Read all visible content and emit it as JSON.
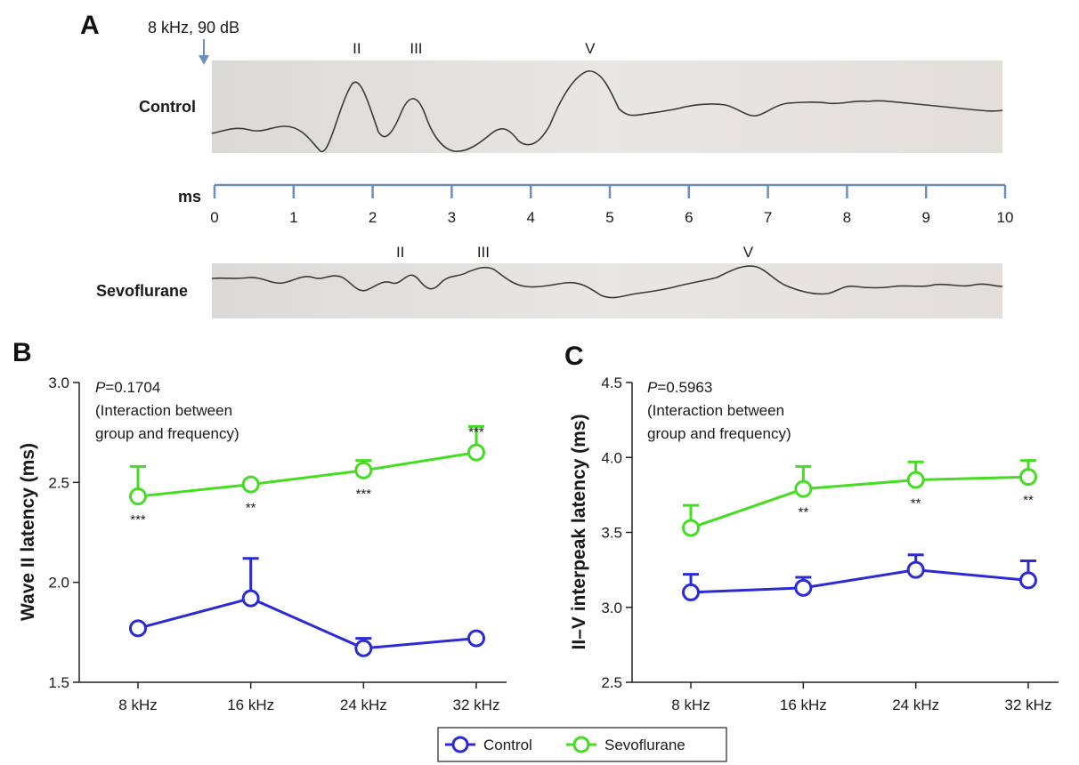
{
  "panel_a": {
    "letter": "A",
    "stimulus_label": "8 kHz, 90 dB",
    "ms_label": "ms",
    "ms_ticks": [
      "0",
      "1",
      "2",
      "3",
      "4",
      "5",
      "6",
      "7",
      "8",
      "9",
      "10"
    ],
    "control": {
      "label": "Control",
      "peaks": [
        {
          "label": "II",
          "ms": 1.8
        },
        {
          "label": "III",
          "ms": 2.55
        },
        {
          "label": "V",
          "ms": 4.75
        }
      ]
    },
    "sevoflurane": {
      "label": "Sevoflurane",
      "peaks": [
        {
          "label": "II",
          "ms": 2.35
        },
        {
          "label": "III",
          "ms": 3.4
        },
        {
          "label": "V",
          "ms": 6.75
        }
      ]
    }
  },
  "chart_data": [
    {
      "type": "line",
      "panel": "B",
      "ylabel": "Wave II latency (ms)",
      "xlabel": "",
      "categories": [
        "8 kHz",
        "16 kHz",
        "24 kHz",
        "32 kHz"
      ],
      "ylim": [
        1.5,
        3.0
      ],
      "yticks": [
        "1.5",
        "2.0",
        "2.5",
        "3.0"
      ],
      "ytick_values": [
        1.5,
        2.0,
        2.5,
        3.0
      ],
      "annotation": {
        "p_prefix": "P",
        "p_value": "=0.1704",
        "line1": "(Interaction between",
        "line2": "group and frequency)"
      },
      "series": [
        {
          "name": "Control",
          "values": [
            1.77,
            1.92,
            1.67,
            1.72
          ],
          "errors": [
            0.0,
            0.2,
            0.05,
            0.0
          ]
        },
        {
          "name": "Sevoflurane",
          "values": [
            2.43,
            2.49,
            2.56,
            2.65
          ],
          "errors": [
            0.15,
            0.0,
            0.05,
            0.13
          ]
        }
      ],
      "significance": [
        "***",
        "**",
        "***",
        "***"
      ],
      "significance_position": [
        "below",
        "below",
        "below",
        "above"
      ]
    },
    {
      "type": "line",
      "panel": "C",
      "ylabel": "II–V interpeak latency (ms)",
      "xlabel": "",
      "categories": [
        "8 kHz",
        "16 kHz",
        "24 kHz",
        "32 kHz"
      ],
      "ylim": [
        2.5,
        4.5
      ],
      "yticks": [
        "2.5",
        "3.0",
        "3.5",
        "4.0",
        "4.5"
      ],
      "ytick_values": [
        2.5,
        3.0,
        3.5,
        4.0,
        4.5
      ],
      "annotation": {
        "p_prefix": "P",
        "p_value": "=0.5963",
        "line1": "(Interaction between",
        "line2": "group and frequency)"
      },
      "series": [
        {
          "name": "Control",
          "values": [
            3.1,
            3.13,
            3.25,
            3.18
          ],
          "errors": [
            0.12,
            0.07,
            0.1,
            0.13
          ]
        },
        {
          "name": "Sevoflurane",
          "values": [
            3.53,
            3.79,
            3.85,
            3.87
          ],
          "errors": [
            0.15,
            0.15,
            0.12,
            0.11
          ]
        }
      ],
      "significance": [
        "",
        "**",
        "**",
        "**"
      ],
      "significance_position": [
        "below",
        "below",
        "below",
        "below"
      ]
    }
  ],
  "legend": {
    "placement": "bottom-center",
    "items": [
      {
        "name": "Control",
        "color": "#2a2ad6"
      },
      {
        "name": "Sevoflurane",
        "color": "#44dd22"
      }
    ]
  },
  "colors": {
    "control": "#2a2ad6",
    "sevoflurane": "#44dd22",
    "ruler": "#6b8fb8",
    "arrow": "#6b8fb8",
    "paper": "#e6e4e1",
    "trace": "#3a3a3a"
  }
}
